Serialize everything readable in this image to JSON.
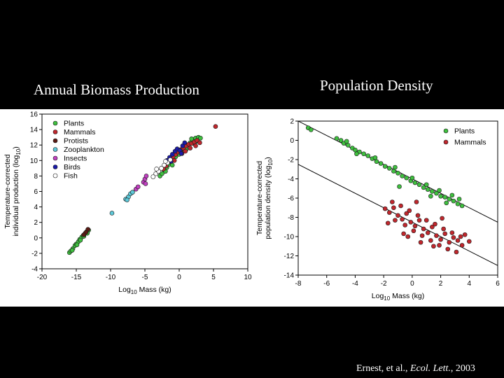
{
  "slide": {
    "title_left": "Annual Biomass Production",
    "title_right": "Population Density",
    "citation_prefix": "Ernest, et al.,",
    "citation_journal": "Ecol. Lett.",
    "citation_suffix": ", 2003"
  },
  "chart_data": [
    {
      "type": "scatter",
      "title": "Annual Biomass Production",
      "xlabel": "Log10 Mass (kg)",
      "ylabel": "Temperature-corrected individual production (log10)",
      "xlabel_parts": {
        "base": "Log",
        "sub": "10",
        "rest": " Mass (kg)"
      },
      "ylabel_lines": [
        "Temperature-corrected",
        "individual production (log",
        "10",
        ")"
      ],
      "xlim": [
        -20,
        10
      ],
      "ylim": [
        -4,
        16
      ],
      "xticks": [
        -20,
        -15,
        -10,
        -5,
        0,
        5,
        10
      ],
      "yticks": [
        -4,
        -2,
        0,
        2,
        4,
        6,
        8,
        10,
        12,
        14,
        16
      ],
      "legend": "top-left",
      "grid": false,
      "series": [
        {
          "name": "Plants",
          "color": "#3fbf3f",
          "points": [
            [
              -16,
              -1.9
            ],
            [
              -15.8,
              -1.7
            ],
            [
              -15.5,
              -1.4
            ],
            [
              -15.2,
              -1.0
            ],
            [
              -15.0,
              -0.8
            ],
            [
              -14.7,
              -0.5
            ],
            [
              -14.5,
              -0.2
            ],
            [
              -14.2,
              0.1
            ],
            [
              -14.0,
              0.3
            ],
            [
              -13.7,
              0.6
            ],
            [
              -13.5,
              0.8
            ],
            [
              -13.2,
              1.0
            ],
            [
              -15.6,
              -1.6
            ],
            [
              -14.9,
              -0.9
            ],
            [
              -14.4,
              -0.3
            ],
            [
              -13.9,
              0.2
            ],
            [
              -13.4,
              0.6
            ],
            [
              -2.8,
              8.0
            ],
            [
              -2.5,
              8.3
            ],
            [
              -2.2,
              8.8
            ],
            [
              -1.8,
              9.1
            ],
            [
              -1.5,
              9.5
            ],
            [
              -1.2,
              9.8
            ],
            [
              -0.8,
              10.2
            ],
            [
              -0.5,
              10.5
            ],
            [
              -0.2,
              10.9
            ],
            [
              0.2,
              11.2
            ],
            [
              0.5,
              11.5
            ],
            [
              0.9,
              11.8
            ],
            [
              1.2,
              12.0
            ],
            [
              1.6,
              12.3
            ],
            [
              2.0,
              12.6
            ],
            [
              2.4,
              12.9
            ],
            [
              2.8,
              13.0
            ],
            [
              3.1,
              12.9
            ],
            [
              1.0,
              11.4
            ],
            [
              -1.0,
              9.4
            ],
            [
              0.0,
              10.8
            ],
            [
              2.2,
              12.2
            ],
            [
              -2.0,
              8.6
            ],
            [
              1.8,
              12.8
            ],
            [
              2.6,
              12.5
            ]
          ]
        },
        {
          "name": "Mammals",
          "color": "#c0272d",
          "points": [
            [
              -2.3,
              8.9
            ],
            [
              -1.9,
              9.3
            ],
            [
              -1.5,
              9.8
            ],
            [
              -1.2,
              10.2
            ],
            [
              -0.9,
              10.5
            ],
            [
              -0.5,
              10.8
            ],
            [
              -0.2,
              11.1
            ],
            [
              0.2,
              11.4
            ],
            [
              0.6,
              11.6
            ],
            [
              1.0,
              11.9
            ],
            [
              1.4,
              12.1
            ],
            [
              1.8,
              12.2
            ],
            [
              2.2,
              12.4
            ],
            [
              2.6,
              12.6
            ],
            [
              3.0,
              12.3
            ],
            [
              0.4,
              10.9
            ],
            [
              -0.7,
              10.0
            ],
            [
              1.6,
              11.6
            ],
            [
              5.3,
              14.4
            ],
            [
              2.4,
              11.9
            ],
            [
              0.9,
              11.2
            ]
          ]
        },
        {
          "name": "Protists",
          "color": "#5a1a14",
          "points": [
            [
              -13.3,
              1.1
            ],
            [
              -13.6,
              0.7
            ],
            [
              -13.9,
              0.4
            ]
          ]
        },
        {
          "name": "Zooplankton",
          "color": "#5ec8d8",
          "points": [
            [
              -9.8,
              3.2
            ],
            [
              -7.8,
              5.0
            ],
            [
              -7.4,
              5.3
            ],
            [
              -7.1,
              5.7
            ],
            [
              -6.8,
              5.9
            ],
            [
              -7.6,
              4.9
            ]
          ]
        },
        {
          "name": "Insects",
          "color": "#c040c0",
          "points": [
            [
              -5.2,
              7.2
            ],
            [
              -5.0,
              7.6
            ],
            [
              -4.8,
              8.0
            ],
            [
              -4.9,
              7.0
            ],
            [
              -6.3,
              6.3
            ],
            [
              -6.0,
              6.6
            ]
          ]
        },
        {
          "name": "Birds",
          "color": "#1a1aa8",
          "points": [
            [
              -1.8,
              10.0
            ],
            [
              -1.4,
              10.4
            ],
            [
              -1.0,
              10.8
            ],
            [
              -0.6,
              11.2
            ],
            [
              -0.3,
              11.5
            ],
            [
              0.1,
              11.3
            ],
            [
              0.5,
              11.9
            ],
            [
              0.8,
              12.3
            ],
            [
              -1.2,
              9.9
            ],
            [
              0.3,
              10.9
            ]
          ]
        },
        {
          "name": "Fish",
          "color": "#ffffff",
          "points": [
            [
              -3.8,
              7.9
            ],
            [
              -3.4,
              8.3
            ],
            [
              -3.0,
              8.6
            ],
            [
              -2.6,
              9.0
            ],
            [
              -2.2,
              9.4
            ],
            [
              -1.7,
              9.7
            ],
            [
              -1.3,
              10.1
            ],
            [
              -3.3,
              8.9
            ],
            [
              -2.0,
              9.9
            ]
          ]
        }
      ]
    },
    {
      "type": "scatter",
      "title": "Population Density",
      "xlabel": "Log10 Mass (kg)",
      "ylabel": "Temperature-corrected population density (log10)",
      "xlabel_parts": {
        "base": "Log",
        "sub": "10",
        "rest": " Mass (kg)"
      },
      "ylabel_lines": [
        "Temperature-corrected",
        "population density (log",
        "10",
        ")"
      ],
      "xlim": [
        -8,
        6
      ],
      "ylim": [
        -14,
        2
      ],
      "xticks": [
        -8,
        -6,
        -4,
        -2,
        0,
        2,
        4,
        6
      ],
      "yticks": [
        -14,
        -12,
        -10,
        -8,
        -6,
        -4,
        -2,
        0,
        2
      ],
      "legend": "top-right",
      "grid": false,
      "fit_lines": [
        {
          "from": [
            -8,
            2.0
          ],
          "to": [
            6,
            -8.5
          ]
        },
        {
          "from": [
            -8,
            -2.5
          ],
          "to": [
            6,
            -13.0
          ]
        }
      ],
      "series": [
        {
          "name": "Plants",
          "color": "#3fbf3f",
          "points": [
            [
              -7.3,
              1.3
            ],
            [
              -7.1,
              1.1
            ],
            [
              -5.3,
              0.2
            ],
            [
              -5.0,
              0.0
            ],
            [
              -4.8,
              -0.3
            ],
            [
              -4.5,
              -0.5
            ],
            [
              -4.2,
              -0.8
            ],
            [
              -4.0,
              -1.0
            ],
            [
              -3.7,
              -1.2
            ],
            [
              -3.4,
              -1.4
            ],
            [
              -3.1,
              -1.6
            ],
            [
              -2.8,
              -1.9
            ],
            [
              -2.5,
              -2.2
            ],
            [
              -2.2,
              -2.4
            ],
            [
              -1.9,
              -2.7
            ],
            [
              -1.6,
              -2.9
            ],
            [
              -1.3,
              -3.2
            ],
            [
              -1.0,
              -3.4
            ],
            [
              -0.7,
              -3.7
            ],
            [
              -0.4,
              -3.9
            ],
            [
              -0.1,
              -4.2
            ],
            [
              0.2,
              -4.4
            ],
            [
              0.5,
              -4.6
            ],
            [
              0.8,
              -4.9
            ],
            [
              1.1,
              -5.1
            ],
            [
              1.4,
              -5.3
            ],
            [
              1.7,
              -5.5
            ],
            [
              2.0,
              -5.8
            ],
            [
              2.3,
              -5.9
            ],
            [
              2.6,
              -6.1
            ],
            [
              2.9,
              -6.3
            ],
            [
              3.2,
              -6.6
            ],
            [
              3.5,
              -6.8
            ],
            [
              -4.6,
              -0.1
            ],
            [
              -3.9,
              -1.4
            ],
            [
              -2.6,
              -1.8
            ],
            [
              -1.2,
              -2.8
            ],
            [
              0.0,
              -3.9
            ],
            [
              1.0,
              -4.6
            ],
            [
              1.9,
              -5.2
            ],
            [
              2.8,
              -5.7
            ],
            [
              3.3,
              -6.1
            ],
            [
              -0.9,
              -4.8
            ],
            [
              1.3,
              -5.8
            ],
            [
              2.4,
              -6.5
            ]
          ]
        },
        {
          "name": "Mammals",
          "color": "#c0272d",
          "points": [
            [
              -1.9,
              -7.1
            ],
            [
              -1.6,
              -7.5
            ],
            [
              -1.3,
              -7.0
            ],
            [
              -1.0,
              -7.8
            ],
            [
              -0.7,
              -8.2
            ],
            [
              -0.4,
              -7.6
            ],
            [
              -0.1,
              -8.5
            ],
            [
              0.2,
              -8.9
            ],
            [
              0.5,
              -8.3
            ],
            [
              0.8,
              -9.2
            ],
            [
              1.1,
              -9.6
            ],
            [
              1.4,
              -9.0
            ],
            [
              1.7,
              -9.9
            ],
            [
              2.0,
              -10.3
            ],
            [
              2.3,
              -9.7
            ],
            [
              2.6,
              -10.6
            ],
            [
              2.9,
              -10.1
            ],
            [
              3.2,
              -10.4
            ],
            [
              3.5,
              -10.9
            ],
            [
              -1.4,
              -6.4
            ],
            [
              -0.8,
              -6.8
            ],
            [
              -0.2,
              -7.3
            ],
            [
              0.4,
              -7.8
            ],
            [
              1.0,
              -8.3
            ],
            [
              1.6,
              -8.7
            ],
            [
              2.2,
              -9.2
            ],
            [
              2.8,
              -9.6
            ],
            [
              3.4,
              -10.0
            ],
            [
              -1.2,
              -8.3
            ],
            [
              -0.5,
              -8.8
            ],
            [
              0.1,
              -9.4
            ],
            [
              0.7,
              -9.9
            ],
            [
              1.3,
              -10.4
            ],
            [
              1.9,
              -10.9
            ],
            [
              2.5,
              -11.3
            ],
            [
              3.1,
              -11.6
            ],
            [
              -0.6,
              -9.7
            ],
            [
              0.6,
              -10.6
            ],
            [
              1.5,
              -11.0
            ],
            [
              -1.7,
              -8.6
            ],
            [
              4.0,
              -10.5
            ],
            [
              3.7,
              -9.8
            ],
            [
              0.3,
              -6.4
            ],
            [
              -0.3,
              -10.0
            ],
            [
              2.1,
              -8.1
            ]
          ]
        }
      ]
    }
  ]
}
